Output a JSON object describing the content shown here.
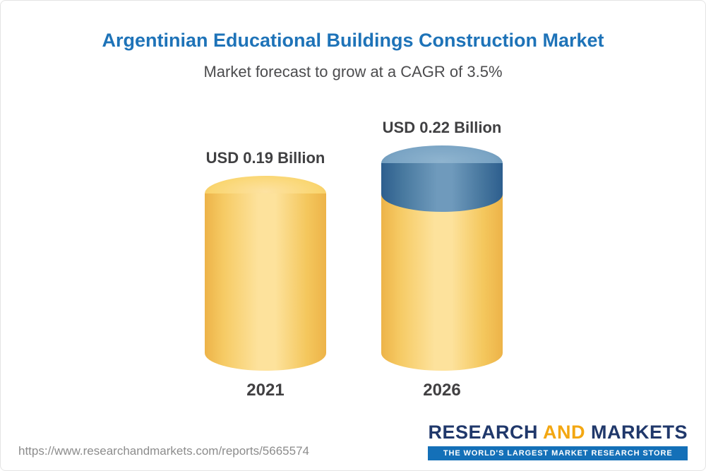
{
  "chart_data": {
    "type": "bar",
    "variant": "3d-cylinder",
    "title": "Argentinian Educational Buildings Construction Market",
    "subtitle": "Market forecast to grow at a CAGR of 3.5%",
    "unit": "USD Billion",
    "cagr_percent": 3.5,
    "categories": [
      "2021",
      "2026"
    ],
    "values": [
      0.19,
      0.22
    ],
    "bars": [
      {
        "category": "2021",
        "value": 0.19,
        "label": "USD 0.19 Billion",
        "color": "#F7CB66"
      },
      {
        "category": "2026",
        "value": 0.22,
        "label": "USD 0.22 Billion",
        "color": "#F7CB66",
        "cap_value": 0.03,
        "cap_color": "#4E7FA8"
      }
    ],
    "colors": {
      "bar_yellow": "#F7CB66",
      "growth_cap_blue": "#4E7FA8",
      "title_blue": "#1E73B8"
    },
    "legend": "none",
    "grid": false,
    "axes": "none"
  },
  "footer": {
    "url": "https://www.researchandmarkets.com/reports/5665574",
    "logo": {
      "word1": "RESEARCH",
      "word2": "AND",
      "word3": "MARKETS",
      "tagline": "THE WORLD'S LARGEST MARKET RESEARCH STORE"
    }
  }
}
